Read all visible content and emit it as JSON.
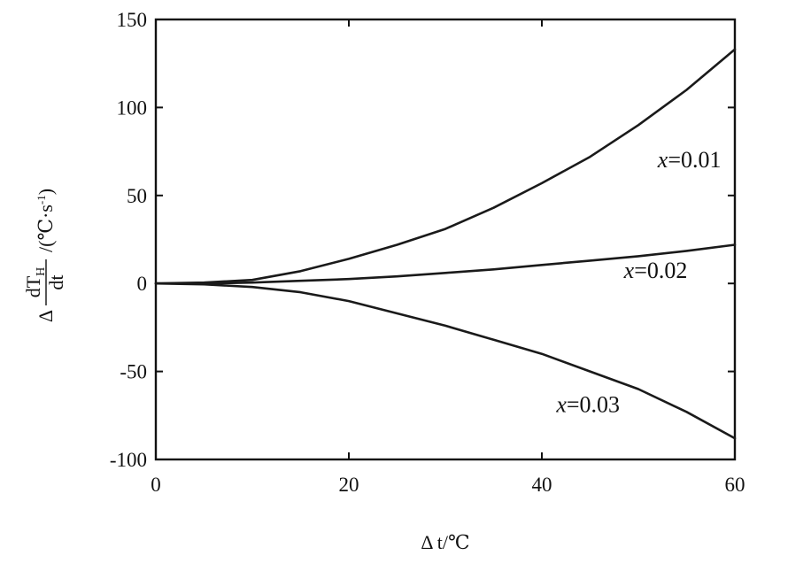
{
  "chart_data": {
    "type": "line",
    "xlabel": "Δ t/℃",
    "ylabel": {
      "numerator": "dT",
      "numerator_sub": "H",
      "prefix": "Δ",
      "denominator": "dt",
      "unit": "/(℃·s",
      "unit_sup": "-1",
      "unit_close": ")"
    },
    "xlim": [
      0,
      60
    ],
    "ylim": [
      -100,
      150
    ],
    "xticks": [
      0,
      20,
      40,
      60
    ],
    "xtick_labels": [
      "0",
      "20",
      "40",
      "60"
    ],
    "yticks": [
      -100,
      -50,
      0,
      50,
      100,
      150
    ],
    "ytick_labels": [
      "-100",
      "-50",
      "0",
      "50",
      "100",
      "150"
    ],
    "grid": false,
    "series": [
      {
        "name": "x=0.01",
        "label_prefix": "x",
        "label_value": "=0.01",
        "x": [
          0,
          5,
          10,
          15,
          20,
          25,
          30,
          35,
          40,
          45,
          50,
          55,
          60
        ],
        "y": [
          0,
          0.5,
          2,
          7,
          14,
          22,
          31,
          43,
          57,
          72,
          90,
          110,
          133
        ]
      },
      {
        "name": "x=0.02",
        "label_prefix": "x",
        "label_value": "=0.02",
        "x": [
          0,
          5,
          10,
          15,
          20,
          25,
          30,
          35,
          40,
          45,
          50,
          55,
          60
        ],
        "y": [
          0,
          0,
          0.5,
          1.5,
          2.5,
          4,
          6,
          8,
          10.5,
          13,
          15.5,
          18.5,
          22
        ]
      },
      {
        "name": "x=0.03",
        "label_prefix": "x",
        "label_value": "=0.03",
        "x": [
          0,
          5,
          10,
          15,
          20,
          25,
          30,
          35,
          40,
          45,
          50,
          55,
          60
        ],
        "y": [
          0,
          -0.5,
          -2,
          -5,
          -10,
          -17,
          -24,
          -32,
          -40,
          -50,
          -60,
          -73,
          -88
        ]
      }
    ]
  }
}
